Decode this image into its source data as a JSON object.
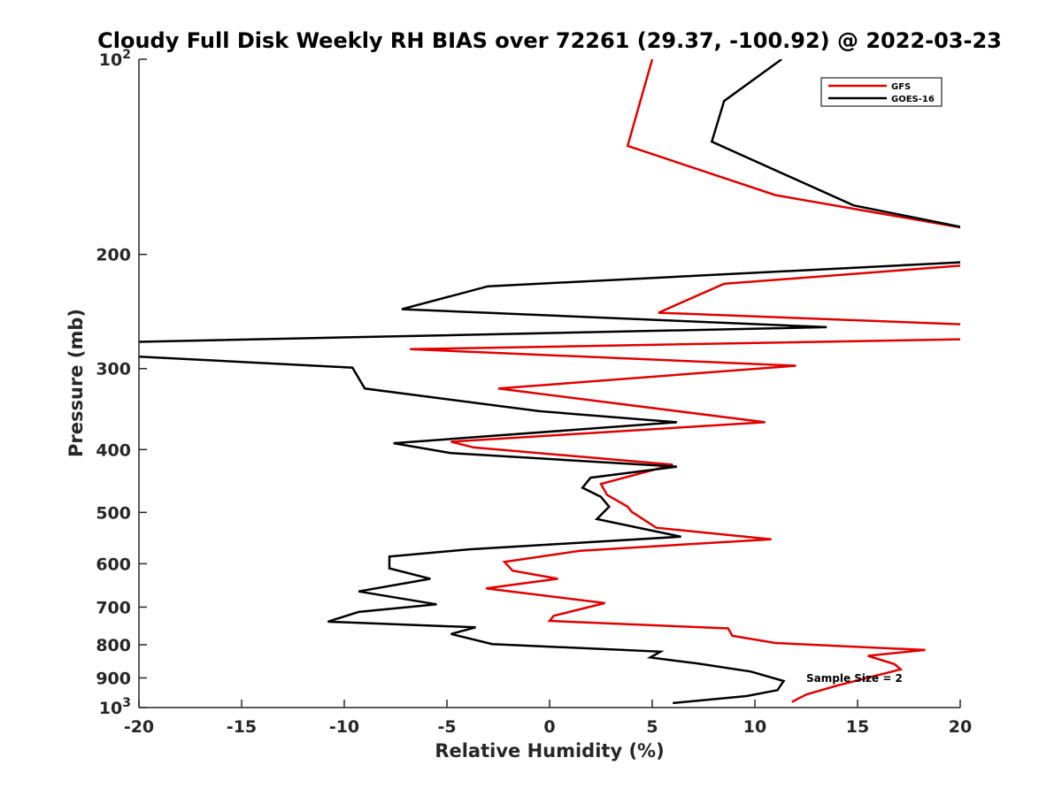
{
  "chart_data": {
    "type": "line",
    "title": "Cloudy Full Disk Weekly RH BIAS over 72261 (29.37, -100.92) @ 2022-03-23",
    "xlabel": "Relative Humidity (%)",
    "ylabel": "Pressure (mb)",
    "xlim": [
      -20,
      20
    ],
    "ylim": [
      100,
      1000
    ],
    "y_scale": "log",
    "y_reversed": true,
    "grid": false,
    "legend_position": "top-right",
    "x_ticks": [
      -20,
      -15,
      -10,
      -5,
      0,
      5,
      10,
      15,
      20
    ],
    "y_ticks": [
      {
        "value": 100,
        "base": "10",
        "exp": "2"
      },
      {
        "value": 200,
        "label": "200"
      },
      {
        "value": 300,
        "label": "300"
      },
      {
        "value": 400,
        "label": "400"
      },
      {
        "value": 500,
        "label": "500"
      },
      {
        "value": 600,
        "label": "600"
      },
      {
        "value": 700,
        "label": "700"
      },
      {
        "value": 800,
        "label": "800"
      },
      {
        "value": 900,
        "label": "900"
      },
      {
        "value": 1000,
        "base": "10",
        "exp": "3"
      }
    ],
    "series": [
      {
        "name": "GFS",
        "color": "#e00000",
        "points": [
          [
            5.0,
            100
          ],
          [
            3.8,
            136
          ],
          [
            11.0,
            162
          ],
          [
            21.0,
            184
          ],
          [
            21.0,
            207
          ],
          [
            8.5,
            222
          ],
          [
            5.3,
            246
          ],
          [
            21.0,
            257
          ],
          [
            21.0,
            270
          ],
          [
            -6.8,
            280
          ],
          [
            12.0,
            297
          ],
          [
            -2.5,
            322
          ],
          [
            10.5,
            363
          ],
          [
            -4.8,
            389
          ],
          [
            -3.7,
            397
          ],
          [
            6.0,
            422
          ],
          [
            2.5,
            452
          ],
          [
            2.8,
            470
          ],
          [
            3.8,
            490
          ],
          [
            4.0,
            499
          ],
          [
            5.2,
            528
          ],
          [
            10.8,
            550
          ],
          [
            1.5,
            573
          ],
          [
            -2.2,
            596
          ],
          [
            -1.8,
            615
          ],
          [
            0.4,
            633
          ],
          [
            -3.1,
            655
          ],
          [
            2.7,
            690
          ],
          [
            0.2,
            722
          ],
          [
            0.0,
            735
          ],
          [
            8.7,
            755
          ],
          [
            8.9,
            775
          ],
          [
            11.0,
            795
          ],
          [
            18.3,
            815
          ],
          [
            15.5,
            832
          ],
          [
            16.8,
            857
          ],
          [
            17.1,
            873
          ],
          [
            14.0,
            925
          ],
          [
            12.5,
            955
          ],
          [
            11.8,
            980
          ]
        ]
      },
      {
        "name": "GOES-16",
        "color": "#000000",
        "points": [
          [
            11.3,
            100
          ],
          [
            8.5,
            116
          ],
          [
            7.9,
            134
          ],
          [
            14.8,
            168
          ],
          [
            21.0,
            184
          ],
          [
            21.0,
            205
          ],
          [
            -3.0,
            224
          ],
          [
            -7.2,
            243
          ],
          [
            13.5,
            259
          ],
          [
            -20.5,
            273
          ],
          [
            -20.5,
            287
          ],
          [
            -9.6,
            299
          ],
          [
            -9.0,
            322
          ],
          [
            -0.5,
            349
          ],
          [
            6.2,
            363
          ],
          [
            -7.6,
            391
          ],
          [
            -4.8,
            405
          ],
          [
            6.2,
            425
          ],
          [
            2.0,
            442
          ],
          [
            1.6,
            458
          ],
          [
            2.5,
            473
          ],
          [
            2.9,
            490
          ],
          [
            2.3,
            512
          ],
          [
            6.4,
            545
          ],
          [
            -3.9,
            570
          ],
          [
            -7.8,
            585
          ],
          [
            -7.8,
            610
          ],
          [
            -5.8,
            633
          ],
          [
            -9.3,
            662
          ],
          [
            -5.5,
            693
          ],
          [
            -9.3,
            712
          ],
          [
            -10.8,
            737
          ],
          [
            -3.6,
            752
          ],
          [
            -4.8,
            770
          ],
          [
            -2.8,
            798
          ],
          [
            5.4,
            820
          ],
          [
            4.9,
            837
          ],
          [
            7.2,
            855
          ],
          [
            9.8,
            880
          ],
          [
            11.4,
            910
          ],
          [
            11.1,
            940
          ],
          [
            9.6,
            960
          ],
          [
            6.0,
            984
          ]
        ]
      }
    ],
    "annotation": "Sample Size = 2"
  }
}
